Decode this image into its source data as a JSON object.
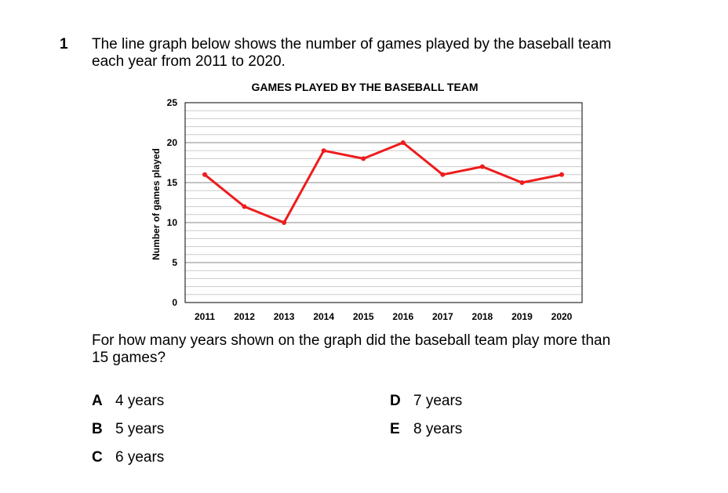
{
  "question": {
    "number": "1",
    "text_line1": "The line graph below shows the number of games played by the baseball team",
    "text_line2": "each year from 2011 to 2020.",
    "follow_up_line1": "For how many years shown on the graph did the baseball team play more than",
    "follow_up_line2": "15 games?"
  },
  "options": [
    {
      "letter": "A",
      "text": "4 years"
    },
    {
      "letter": "B",
      "text": "5 years"
    },
    {
      "letter": "C",
      "text": "6 years"
    },
    {
      "letter": "D",
      "text": "7 years"
    },
    {
      "letter": "E",
      "text": "8 years"
    }
  ],
  "chart_data": {
    "type": "line",
    "title": "GAMES PLAYED BY THE BASEBALL TEAM",
    "xlabel": "",
    "ylabel": "Number of games played",
    "categories": [
      "2011",
      "2012",
      "2013",
      "2014",
      "2015",
      "2016",
      "2017",
      "2018",
      "2019",
      "2020"
    ],
    "series": [
      {
        "values": [
          16,
          12,
          10,
          19,
          18,
          20,
          16,
          17,
          15,
          16
        ],
        "color": "#ee1c1c"
      }
    ],
    "ylim": [
      0,
      25
    ],
    "yticks": [
      0,
      5,
      10,
      15,
      20,
      25
    ],
    "grid": true,
    "minor_grid_step": 1,
    "colors": {
      "major_grid": "#888888",
      "minor_grid": "#cccccc",
      "line": "#ee1c1c"
    }
  }
}
